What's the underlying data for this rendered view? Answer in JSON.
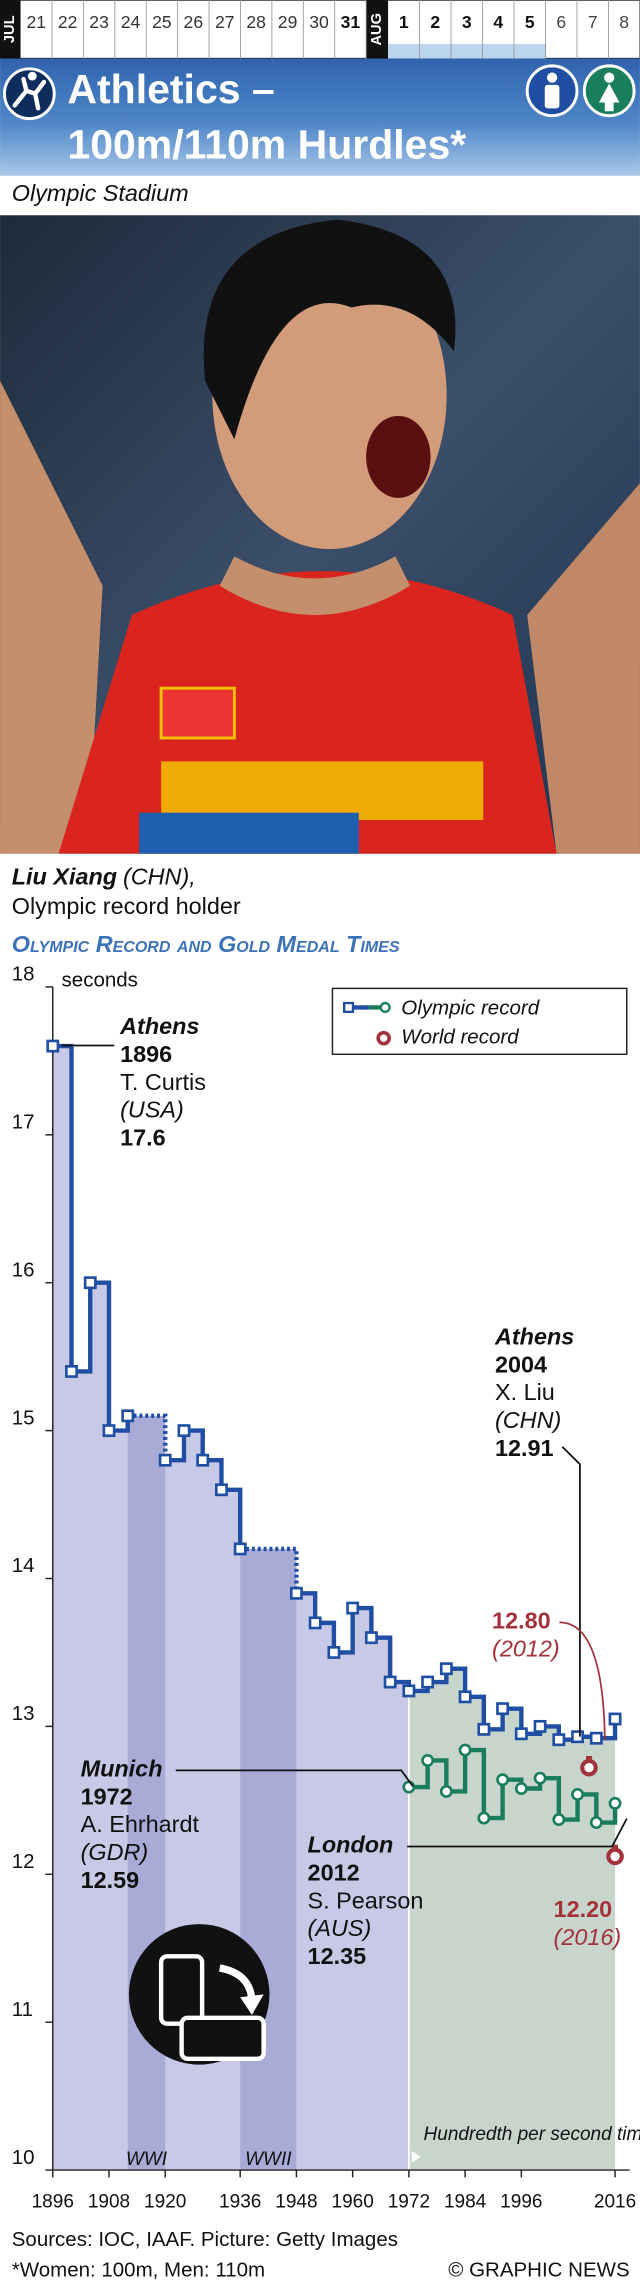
{
  "header": {
    "months": [
      "JUL",
      "AUG"
    ],
    "jul_days": [
      "21",
      "22",
      "23",
      "24",
      "25",
      "26",
      "27",
      "28",
      "29",
      "30",
      "31"
    ],
    "aug_days": [
      "1",
      "2",
      "3",
      "4",
      "5",
      "6",
      "7",
      "8"
    ],
    "title": [
      "Athletics –",
      "100m/110m Hurdles*"
    ],
    "venue": "Olympic Stadium"
  },
  "caption": {
    "name": "Liu Xiang",
    "country": "(CHN),",
    "role": "Olympic record holder"
  },
  "chart_data": {
    "type": "line",
    "step": true,
    "title": "Olympic Record and Gold Medal Times",
    "ylabel": "seconds",
    "x": [
      1896,
      1900,
      1904,
      1908,
      1912,
      1920,
      1924,
      1928,
      1932,
      1936,
      1948,
      1952,
      1956,
      1960,
      1964,
      1968,
      1972,
      1976,
      1980,
      1984,
      1988,
      1992,
      1996,
      2000,
      2004,
      2008,
      2012,
      2016
    ],
    "series": [
      {
        "name": "Olympic record",
        "color": "#1f4ea3",
        "values": [
          17.6,
          15.4,
          16.0,
          15.0,
          15.1,
          14.8,
          15.0,
          14.8,
          14.6,
          14.2,
          13.9,
          13.7,
          13.5,
          13.8,
          13.6,
          13.3,
          13.24,
          13.3,
          13.39,
          13.2,
          12.98,
          13.12,
          12.95,
          13.0,
          12.91,
          12.93,
          12.92,
          13.05
        ]
      },
      {
        "color": "#1a7d5c",
        "values": [
          null,
          null,
          null,
          null,
          null,
          null,
          null,
          null,
          null,
          null,
          null,
          null,
          null,
          null,
          null,
          null,
          12.59,
          12.77,
          12.56,
          12.84,
          12.38,
          12.64,
          12.58,
          12.65,
          12.37,
          12.54,
          12.35,
          12.48
        ]
      }
    ],
    "world_records": {
      "name": "World record",
      "color": "#a3333a",
      "x": [
        2012,
        2016
      ],
      "values": [
        12.8,
        12.2
      ]
    },
    "bands": [
      {
        "label": "WWI",
        "from": 1912,
        "to": 1920
      },
      {
        "label": "WWII",
        "from": 1936,
        "to": 1948
      }
    ],
    "timing_note": {
      "text": "Hundredth per second timing",
      "from": 1972
    },
    "xlim": [
      1896,
      2016
    ],
    "ylim": [
      10,
      18
    ],
    "xticks": [
      1896,
      1908,
      1920,
      1936,
      1948,
      1960,
      1972,
      1984,
      1996,
      2016
    ],
    "yticks": [
      10,
      11,
      12,
      13,
      14,
      15,
      16,
      17,
      18
    ],
    "legend": "upper right",
    "annotations": [
      {
        "lines": [
          "Athens",
          "1896",
          "T. Curtis",
          "(USA)",
          "17.6"
        ]
      },
      {
        "lines": [
          "Athens",
          "2004",
          "X. Liu",
          "(CHN)",
          "12.91"
        ]
      },
      {
        "lines": [
          "Munich",
          "1972",
          "A. Ehrhardt",
          "(GDR)",
          "12.59"
        ]
      },
      {
        "lines": [
          "London",
          "2012",
          "S. Pearson",
          "(AUS)",
          "12.35"
        ]
      },
      {
        "lines": [
          "12.80",
          "(2012)"
        ]
      },
      {
        "lines": [
          "12.20",
          "(2016)"
        ]
      }
    ]
  },
  "footer": {
    "sources": "Sources: IOC, IAAF. Picture: Getty Images",
    "note": "*Women: 100m, Men: 110m",
    "credit": "© GRAPHIC NEWS"
  }
}
